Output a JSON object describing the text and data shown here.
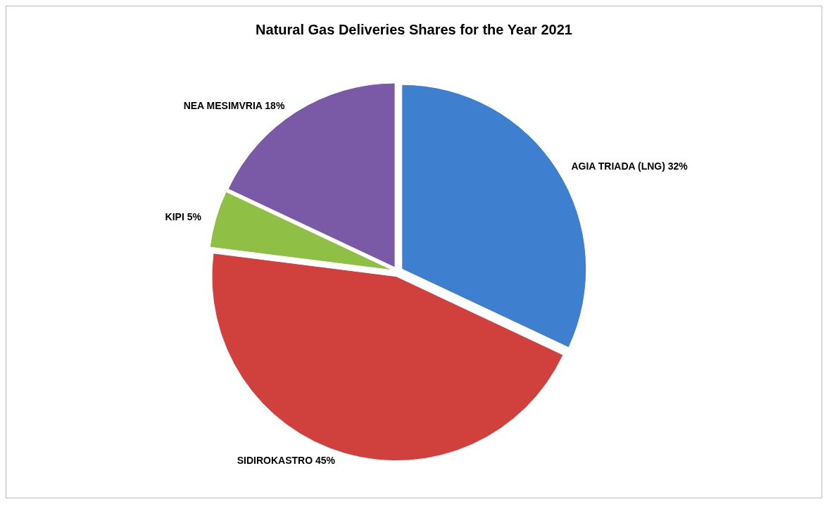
{
  "chart_data": {
    "type": "pie",
    "title": "Natural Gas Deliveries Shares for the Year 2021",
    "categories": [
      "AGIA TRIADA (LNG)",
      "SIDIROKASTRO",
      "KIPI",
      "NEA MESIMVRIA"
    ],
    "values": [
      32,
      45,
      5,
      18
    ],
    "colors": [
      "#3f7fd0",
      "#d0413e",
      "#8fbf45",
      "#7a5aa6"
    ],
    "value_labels": [
      "32%",
      "45%",
      "5%",
      "18%"
    ],
    "legend": false
  }
}
